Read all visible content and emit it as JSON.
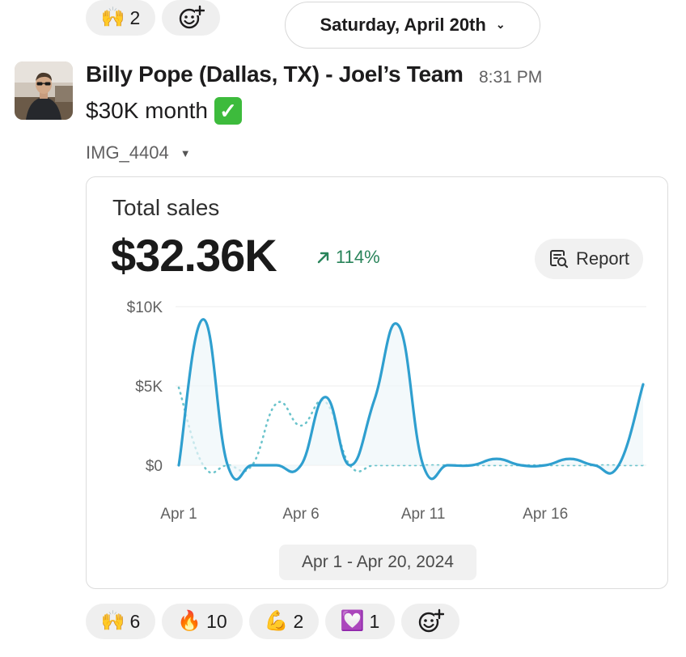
{
  "top_reactions": [
    {
      "emoji": "🙌",
      "count": "2"
    }
  ],
  "date_divider": {
    "label": "Saturday, April 20th"
  },
  "message": {
    "sender": "Billy Pope (Dallas, TX) - Joel’s Team",
    "time": "8:31 PM",
    "text": "$30K month",
    "text_emoji": "✅",
    "attachment_name": "IMG_4404"
  },
  "card": {
    "title": "Total sales",
    "value": "$32.36K",
    "change": "114%",
    "change_color": "#29845a",
    "report_label": "Report",
    "range_label": "Apr 1 - Apr 20, 2024"
  },
  "chart_data": {
    "type": "line",
    "x": [
      "Apr 1",
      "Apr 2",
      "Apr 3",
      "Apr 4",
      "Apr 5",
      "Apr 6",
      "Apr 7",
      "Apr 8",
      "Apr 9",
      "Apr 10",
      "Apr 11",
      "Apr 12",
      "Apr 13",
      "Apr 14",
      "Apr 15",
      "Apr 16",
      "Apr 17",
      "Apr 18",
      "Apr 19",
      "Apr 20"
    ],
    "x_tick_labels": [
      "Apr 1",
      "Apr 6",
      "Apr 11",
      "Apr 16"
    ],
    "y_tick_labels": [
      "$10K",
      "$5K",
      "$0"
    ],
    "ylim": [
      0,
      10000
    ],
    "series": [
      {
        "style": "solid",
        "color": "#2f9fcf",
        "values": [
          0,
          9200,
          0,
          0,
          0,
          0,
          4300,
          0,
          4100,
          8800,
          0,
          0,
          0,
          400,
          0,
          0,
          400,
          0,
          0,
          5100
        ]
      },
      {
        "style": "dotted",
        "color": "#6cc4cc",
        "values": [
          4900,
          0,
          0,
          0,
          3900,
          2500,
          4000,
          0,
          0,
          0,
          0,
          0,
          0,
          0,
          0,
          0,
          0,
          0,
          0,
          0
        ]
      }
    ],
    "grid": true,
    "legend": "none"
  },
  "bottom_reactions": [
    {
      "emoji": "🙌",
      "count": "6"
    },
    {
      "emoji": "🔥",
      "count": "10"
    },
    {
      "emoji": "💪",
      "count": "2"
    },
    {
      "emoji": "💟",
      "count": "1"
    }
  ]
}
